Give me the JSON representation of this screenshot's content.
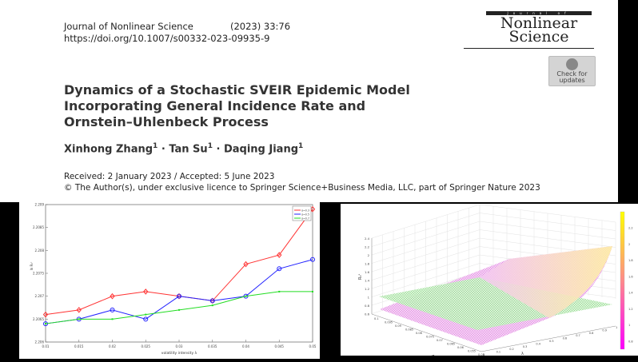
{
  "header": {
    "journal": "Journal of Nonlinear Science",
    "citation": "(2023) 33:76",
    "doi": "https://doi.org/10.1007/s00332-023-09935-9",
    "logo_top": "Journal of",
    "logo_line1": "Nonlinear",
    "logo_line2": "Science",
    "check_updates_line1": "Check for",
    "check_updates_line2": "updates"
  },
  "paper": {
    "title_lines": [
      "Dynamics of a Stochastic SVEIR Epidemic Model",
      "Incorporating General Incidence Rate and",
      "Ornstein–Uhlenbeck Process"
    ],
    "authors": [
      {
        "name": "Xinhong Zhang",
        "aff": "1"
      },
      {
        "name": "Tan Su",
        "aff": "1"
      },
      {
        "name": "Daqing Jiang",
        "aff": "1"
      }
    ],
    "author_separator": "·",
    "received": "Received: 2 January 2023 / Accepted: 5 June 2023",
    "copyright": "© The Author(s), under exclusive licence to Springer Science+Business Media, LLC, part of Springer Nature 2023"
  },
  "chart_data": [
    {
      "type": "line",
      "xlabel": "volatility intensity λ",
      "ylabel": "ln R₀ˢ",
      "x": [
        0.01,
        0.015,
        0.02,
        0.025,
        0.03,
        0.035,
        0.04,
        0.045,
        0.05
      ],
      "xticks": [
        "0.01",
        "0.015",
        "0.02",
        "0.025",
        "0.03",
        "0.035",
        "0.04",
        "0.045",
        "0.05"
      ],
      "yticks": [
        "2.206",
        "2.2065",
        "2.207",
        "2.2075",
        "2.208",
        "2.2085",
        "2.209"
      ],
      "ylim": [
        2.206,
        2.209
      ],
      "xlim": [
        0.01,
        0.05
      ],
      "legend_position": "top-right",
      "grid": false,
      "series": [
        {
          "name": "α=0.3",
          "color": "#ff3333",
          "marker": "diamond",
          "values": [
            2.2066,
            2.2067,
            2.207,
            2.2071,
            2.207,
            2.2069,
            2.2077,
            2.2079,
            2.2089
          ]
        },
        {
          "name": "α=0.5",
          "color": "#2222ff",
          "marker": "circle",
          "values": [
            2.2064,
            2.2065,
            2.2067,
            2.2065,
            2.207,
            2.2069,
            2.207,
            2.2076,
            2.2078
          ]
        },
        {
          "name": "α=0.7",
          "color": "#22dd22",
          "marker": "square",
          "values": [
            2.2064,
            2.2065,
            2.2065,
            2.2066,
            2.2067,
            2.2068,
            2.207,
            2.2071,
            2.2071
          ]
        }
      ]
    },
    {
      "type": "surface",
      "zlabel": "R₀ˢ",
      "xlabel": "λ",
      "ylabel": "σ",
      "zticks": [
        "0.6",
        "0.8",
        "1",
        "1.2",
        "1.4",
        "1.6",
        "1.8",
        "2",
        "2.2",
        "2.4"
      ],
      "xticks": [
        "0",
        "0.1",
        "0.2",
        "0.3",
        "0.4",
        "0.5",
        "0.6",
        "0.7",
        "0.8",
        "0.9",
        "1"
      ],
      "yticks": [
        "0.1",
        "0.095",
        "0.09",
        "0.085",
        "0.08",
        "0.075",
        "0.07",
        "0.065",
        "0.06",
        "0.055",
        "0.05"
      ],
      "colorbar_ticks": [
        "0.8",
        "1",
        "1.2",
        "1.4",
        "1.6",
        "1.8",
        "2",
        "2.2"
      ],
      "colormap": [
        "#ff00ff",
        "#ffff00"
      ],
      "plane_color": "#66dd66",
      "grid": true
    }
  ]
}
